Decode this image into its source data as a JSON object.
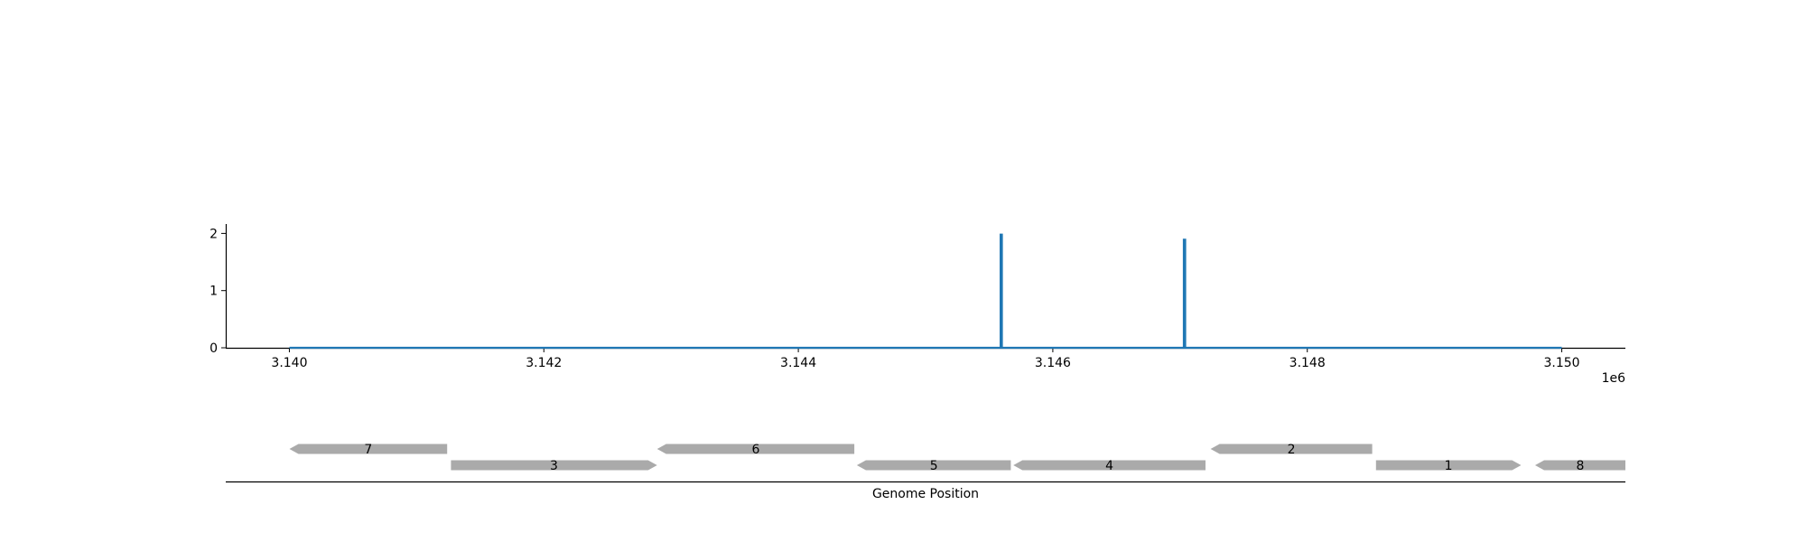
{
  "chart_data": [
    {
      "type": "line",
      "title": "",
      "xlabel": "",
      "ylabel": "",
      "x_offset_label": "1e6",
      "xlim": [
        3139500,
        3150500
      ],
      "ylim": [
        0,
        2.18
      ],
      "x_ticks": [
        {
          "value": 3140000,
          "label": "3.140"
        },
        {
          "value": 3142000,
          "label": "3.142"
        },
        {
          "value": 3144000,
          "label": "3.144"
        },
        {
          "value": 3146000,
          "label": "3.146"
        },
        {
          "value": 3148000,
          "label": "3.148"
        },
        {
          "value": 3150000,
          "label": "3.150"
        }
      ],
      "y_ticks": [
        {
          "value": 0,
          "label": "0"
        },
        {
          "value": 1,
          "label": "1"
        },
        {
          "value": 2,
          "label": "2"
        }
      ],
      "grid": false,
      "line_color": "#1f77b4",
      "series": [
        {
          "x": [
            3140000,
            3145590,
            3145590,
            3145600,
            3145600,
            3147030,
            3147030,
            3147040,
            3147040,
            3150000
          ],
          "y": [
            0,
            0,
            1.98,
            1.98,
            0,
            0,
            1.89,
            1.89,
            0,
            0
          ]
        }
      ]
    },
    {
      "type": "gene_track",
      "xlabel": "Genome Position",
      "gene_color": "#aaaaaa",
      "genes": [
        {
          "label": "7",
          "start": 3140000,
          "end": 3141240,
          "strand": "-",
          "row": 0
        },
        {
          "label": "3",
          "start": 3141270,
          "end": 3142890,
          "strand": "+",
          "row": 1
        },
        {
          "label": "6",
          "start": 3142890,
          "end": 3144440,
          "strand": "-",
          "row": 0
        },
        {
          "label": "5",
          "start": 3144460,
          "end": 3145670,
          "strand": "-",
          "row": 1
        },
        {
          "label": "4",
          "start": 3145690,
          "end": 3147200,
          "strand": "-",
          "row": 1
        },
        {
          "label": "2",
          "start": 3147240,
          "end": 3148510,
          "strand": "-",
          "row": 0
        },
        {
          "label": "1",
          "start": 3148540,
          "end": 3149680,
          "strand": "+",
          "row": 1
        },
        {
          "label": "8",
          "start": 3149790,
          "end": 3150500,
          "strand": "-",
          "row": 1
        }
      ]
    }
  ]
}
